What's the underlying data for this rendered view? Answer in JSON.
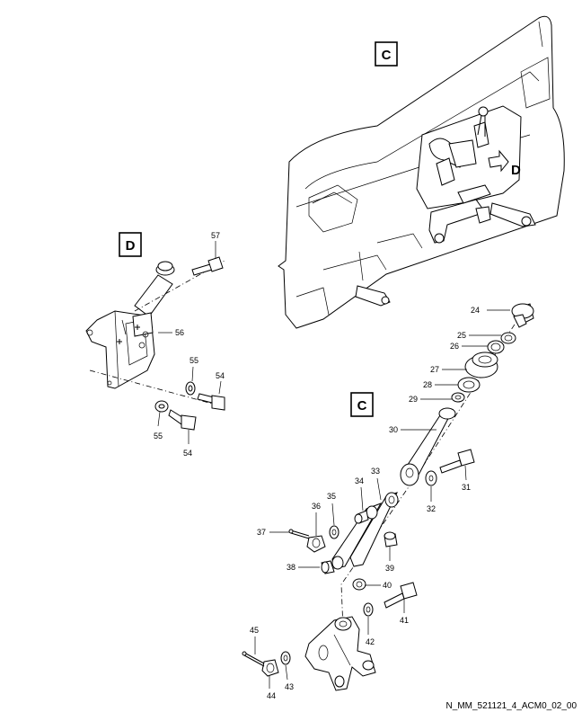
{
  "view_labels": {
    "c_top": "C",
    "d_arrow": "D",
    "d_detail": "D",
    "c_detail": "C"
  },
  "part_numbers": {
    "p24": "24",
    "p25": "25",
    "p26": "26",
    "p27": "27",
    "p28": "28",
    "p29": "29",
    "p30": "30",
    "p31": "31",
    "p32": "32",
    "p33": "33",
    "p34": "34",
    "p35": "35",
    "p36": "36",
    "p37": "37",
    "p38": "38",
    "p39": "39",
    "p40": "40",
    "p41": "41",
    "p42": "42",
    "p43": "43",
    "p44": "44",
    "p45": "45",
    "p54a": "54",
    "p54b": "54",
    "p55a": "55",
    "p55b": "55",
    "p56": "56",
    "p57": "57"
  },
  "reference": "N_MM_521121_4_ACM0_02_00"
}
